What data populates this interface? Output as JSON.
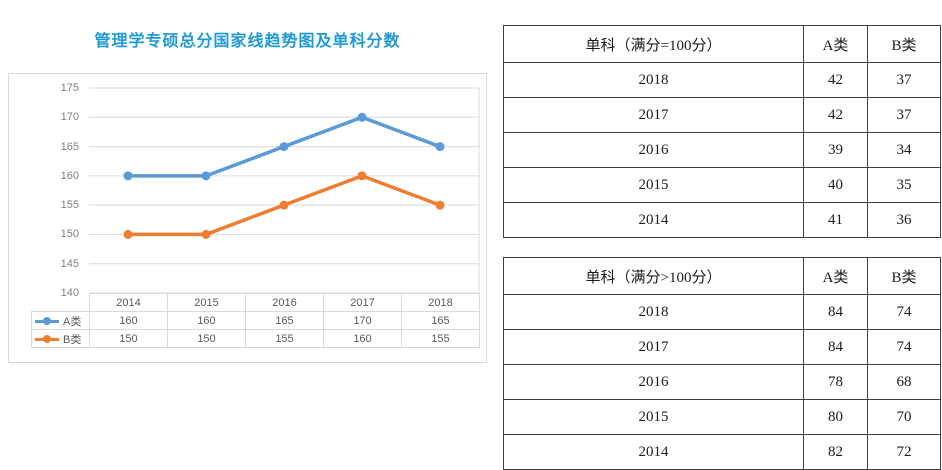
{
  "title": {
    "text": "管理学专硕总分国家线趋势图及单科分数",
    "color": "#1e9ad6"
  },
  "chart_data": {
    "type": "line",
    "title": "管理学专硕总分国家线趋势图及单科分数",
    "categories": [
      "2014",
      "2015",
      "2016",
      "2017",
      "2018"
    ],
    "series": [
      {
        "name": "A类",
        "color": "#5b9bd5",
        "values": [
          160,
          160,
          165,
          170,
          165
        ]
      },
      {
        "name": "B类",
        "color": "#ed7d31",
        "values": [
          150,
          150,
          155,
          160,
          155
        ]
      }
    ],
    "ylim": [
      140,
      175
    ],
    "yticks": [
      175,
      170,
      165,
      160,
      155,
      150,
      145,
      140
    ],
    "grid": true,
    "data_table_shown": true,
    "legend_position": "left-of-data-table",
    "gridline_color": "#d9d9d9",
    "axis_label_color": "#7f7f7f",
    "marker": "circle"
  },
  "score_tables": [
    {
      "header": [
        "单科（满分=100分）",
        "A类",
        "B类"
      ],
      "rows": [
        [
          "2018",
          "42",
          "37"
        ],
        [
          "2017",
          "42",
          "37"
        ],
        [
          "2016",
          "39",
          "34"
        ],
        [
          "2015",
          "40",
          "35"
        ],
        [
          "2014",
          "41",
          "36"
        ]
      ]
    },
    {
      "header": [
        "单科（满分>100分）",
        "A类",
        "B类"
      ],
      "rows": [
        [
          "2018",
          "84",
          "74"
        ],
        [
          "2017",
          "84",
          "74"
        ],
        [
          "2016",
          "78",
          "68"
        ],
        [
          "2015",
          "80",
          "70"
        ],
        [
          "2014",
          "82",
          "72"
        ]
      ]
    }
  ]
}
